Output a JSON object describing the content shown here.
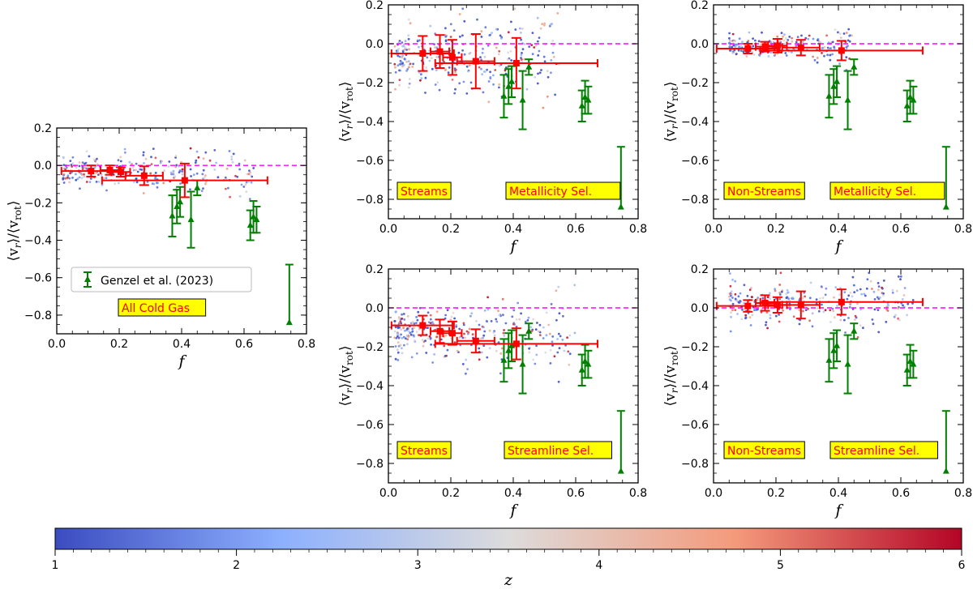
{
  "chart_data": [
    {
      "type": "scatter",
      "title": "",
      "xlabel": "f",
      "ylabel": "⟨v_r⟩/⟨v_rot⟩",
      "ylabel_parts": [
        "⟨v",
        "r",
        "⟩/⟨v",
        "rot",
        "⟩"
      ],
      "xlim": [
        0.0,
        0.8
      ],
      "ylim": [
        -0.9,
        0.2
      ],
      "xticks": [
        "0.0",
        "0.2",
        "0.4",
        "0.6",
        "0.8"
      ],
      "yticks": [
        "0.2",
        "0.0",
        "−0.2",
        "−0.4",
        "−0.6",
        "−0.8"
      ],
      "reference_line": 0.0,
      "tags": [
        "All Cold Gas"
      ],
      "legend": {
        "entry": "Genzel et al. (2023)",
        "position": "lower-left"
      },
      "binned_means": [
        {
          "x": 0.11,
          "y": -0.03,
          "xerr": 0.095,
          "yerr": 0.03
        },
        {
          "x": 0.17,
          "y": -0.025,
          "xerr": 0.03,
          "yerr": 0.025
        },
        {
          "x": 0.205,
          "y": -0.035,
          "xerr": 0.03,
          "yerr": 0.025
        },
        {
          "x": 0.28,
          "y": -0.055,
          "xerr": 0.06,
          "yerr": 0.05
        },
        {
          "x": 0.41,
          "y": -0.08,
          "xerr": 0.265,
          "yerr": 0.09
        }
      ],
      "scatter": {
        "n_points": 240,
        "x_range": [
          0.02,
          0.64
        ],
        "y_center": -0.03,
        "y_spread": 0.05
      }
    },
    {
      "type": "scatter",
      "xlabel": "f",
      "ylabel": "⟨v_r⟩/⟨v_rot⟩",
      "xlim": [
        0.0,
        0.8
      ],
      "ylim": [
        -0.9,
        0.2
      ],
      "xticks": [
        "0.0",
        "0.2",
        "0.4",
        "0.6",
        "0.8"
      ],
      "yticks": [
        "0.2",
        "0.0",
        "−0.2",
        "−0.4",
        "−0.6",
        "−0.8"
      ],
      "reference_line": 0.0,
      "tags": [
        "Streams",
        "Metallicity Sel."
      ],
      "binned_means": [
        {
          "x": 0.11,
          "y": -0.05,
          "xerr": 0.1,
          "yerr": 0.09
        },
        {
          "x": 0.165,
          "y": -0.04,
          "xerr": 0.03,
          "yerr": 0.085
        },
        {
          "x": 0.205,
          "y": -0.07,
          "xerr": 0.03,
          "yerr": 0.09
        },
        {
          "x": 0.28,
          "y": -0.09,
          "xerr": 0.06,
          "yerr": 0.14
        },
        {
          "x": 0.41,
          "y": -0.1,
          "xerr": 0.26,
          "yerr": 0.13
        }
      ],
      "scatter": {
        "n_points": 300,
        "x_range": [
          0.02,
          0.55
        ],
        "y_center": -0.08,
        "y_spread": 0.1
      }
    },
    {
      "type": "scatter",
      "xlabel": "f",
      "ylabel": "⟨v_r⟩/⟨v_rot⟩",
      "xlim": [
        0.0,
        0.8
      ],
      "ylim": [
        -0.9,
        0.2
      ],
      "xticks": [
        "0.0",
        "0.2",
        "0.4",
        "0.6",
        "0.8"
      ],
      "yticks": [
        "0.2",
        "0.0",
        "−0.2",
        "−0.4",
        "−0.6",
        "−0.8"
      ],
      "reference_line": 0.0,
      "tags": [
        "Non-Streams",
        "Metallicity Sel."
      ],
      "binned_means": [
        {
          "x": 0.11,
          "y": -0.025,
          "xerr": 0.1,
          "yerr": 0.025
        },
        {
          "x": 0.165,
          "y": -0.015,
          "xerr": 0.03,
          "yerr": 0.025
        },
        {
          "x": 0.205,
          "y": -0.01,
          "xerr": 0.03,
          "yerr": 0.035
        },
        {
          "x": 0.28,
          "y": -0.02,
          "xerr": 0.06,
          "yerr": 0.04
        },
        {
          "x": 0.41,
          "y": -0.035,
          "xerr": 0.26,
          "yerr": 0.05
        }
      ],
      "scatter": {
        "n_points": 200,
        "x_range": [
          0.05,
          0.45
        ],
        "y_center": -0.01,
        "y_spread": 0.04
      }
    },
    {
      "type": "scatter",
      "xlabel": "f",
      "ylabel": "⟨v_r⟩/⟨v_rot⟩",
      "xlim": [
        0.0,
        0.8
      ],
      "ylim": [
        -0.9,
        0.2
      ],
      "xticks": [
        "0.0",
        "0.2",
        "0.4",
        "0.6",
        "0.8"
      ],
      "yticks": [
        "0.2",
        "0.0",
        "−0.2",
        "−0.4",
        "−0.6",
        "−0.8"
      ],
      "reference_line": 0.0,
      "tags": [
        "Streams",
        "Streamline Sel."
      ],
      "binned_means": [
        {
          "x": 0.11,
          "y": -0.09,
          "xerr": 0.1,
          "yerr": 0.05
        },
        {
          "x": 0.165,
          "y": -0.12,
          "xerr": 0.03,
          "yerr": 0.06
        },
        {
          "x": 0.205,
          "y": -0.13,
          "xerr": 0.03,
          "yerr": 0.06
        },
        {
          "x": 0.28,
          "y": -0.17,
          "xerr": 0.06,
          "yerr": 0.06
        },
        {
          "x": 0.41,
          "y": -0.185,
          "xerr": 0.26,
          "yerr": 0.08
        }
      ],
      "scatter": {
        "n_points": 300,
        "x_range": [
          0.02,
          0.6
        ],
        "y_center": -0.13,
        "y_spread": 0.08
      }
    },
    {
      "type": "scatter",
      "xlabel": "f",
      "ylabel": "⟨v_r⟩/⟨v_rot⟩",
      "xlim": [
        0.0,
        0.8
      ],
      "ylim": [
        -0.9,
        0.2
      ],
      "xticks": [
        "0.0",
        "0.2",
        "0.4",
        "0.6",
        "0.8"
      ],
      "yticks": [
        "0.2",
        "0.0",
        "−0.2",
        "−0.4",
        "−0.6",
        "−0.8"
      ],
      "reference_line": 0.0,
      "tags": [
        "Non-Streams",
        "Streamline Sel."
      ],
      "binned_means": [
        {
          "x": 0.11,
          "y": 0.01,
          "xerr": 0.1,
          "yerr": 0.03
        },
        {
          "x": 0.165,
          "y": 0.025,
          "xerr": 0.03,
          "yerr": 0.04
        },
        {
          "x": 0.205,
          "y": 0.015,
          "xerr": 0.03,
          "yerr": 0.04
        },
        {
          "x": 0.28,
          "y": 0.015,
          "xerr": 0.06,
          "yerr": 0.07
        },
        {
          "x": 0.41,
          "y": 0.03,
          "xerr": 0.26,
          "yerr": 0.065
        }
      ],
      "scatter": {
        "n_points": 260,
        "x_range": [
          0.05,
          0.64
        ],
        "y_center": 0.03,
        "y_spread": 0.06
      }
    }
  ],
  "observations": {
    "name": "Genzel et al. (2023)",
    "points": [
      {
        "x": 0.37,
        "y": -0.27,
        "yerr": 0.11
      },
      {
        "x": 0.385,
        "y": -0.22,
        "yerr": 0.09
      },
      {
        "x": 0.395,
        "y": -0.195,
        "yerr": 0.08
      },
      {
        "x": 0.43,
        "y": -0.29,
        "yerr": 0.15
      },
      {
        "x": 0.45,
        "y": -0.12,
        "yerr": 0.04
      },
      {
        "x": 0.62,
        "y": -0.32,
        "yerr": 0.08
      },
      {
        "x": 0.63,
        "y": -0.275,
        "yerr": 0.085
      },
      {
        "x": 0.64,
        "y": -0.29,
        "yerr": 0.07
      },
      {
        "x": 0.745,
        "y": -0.84,
        "yerr_up": 0.31
      }
    ]
  },
  "colorbar": {
    "label": "z",
    "range": [
      1,
      6
    ],
    "ticks": [
      "1",
      "2",
      "3",
      "4",
      "5",
      "6"
    ],
    "colors": [
      "#3b4cc0",
      "#8db0fe",
      "#dddcdc",
      "#f49a7b",
      "#b40426"
    ]
  },
  "colors": {
    "mean": "#ff0000",
    "obs": "#008000",
    "ref": "#ff00ff",
    "tag_bg": "#ffff00"
  }
}
